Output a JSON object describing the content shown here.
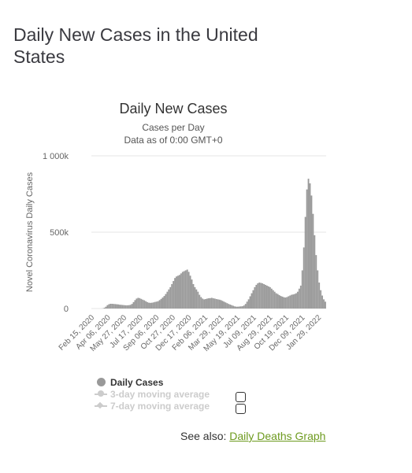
{
  "page": {
    "heading": "Daily New Cases in the United States"
  },
  "chart_data": {
    "type": "bar",
    "title": "Daily New Cases",
    "subtitle": "Cases per Day",
    "subtitle2": "Data as of 0:00 GMT+0",
    "xlabel": "",
    "ylabel": "Novel Coronavirus Daily Cases",
    "ylim": [
      0,
      1000000
    ],
    "yticks": [
      {
        "value": 0,
        "label": "0"
      },
      {
        "value": 500000,
        "label": "500k"
      },
      {
        "value": 1000000,
        "label": "1 000k"
      }
    ],
    "grid": true,
    "color": "#999999",
    "xticks": [
      "Feb 15, 2020",
      "Apr 06, 2020",
      "May 27, 2020",
      "Jul 17, 2020",
      "Sep 06, 2020",
      "Oct 27, 2020",
      "Dec 17, 2020",
      "Feb 06, 2021",
      "Mar 29, 2021",
      "May 19, 2021",
      "Jul 09, 2021",
      "Aug 29, 2021",
      "Oct 19, 2021",
      "Dec 09, 2021",
      "Jan 29, 2022"
    ],
    "series": [
      {
        "name": "Daily Cases",
        "x_start": "2020-02-15",
        "x_end": "2022-03-01",
        "values": [
          0,
          0,
          0,
          0,
          0,
          0,
          0,
          1000,
          5000,
          12000,
          22000,
          28000,
          31000,
          31000,
          30000,
          29000,
          28000,
          27000,
          25000,
          24000,
          23000,
          22000,
          21000,
          21000,
          22000,
          24000,
          30000,
          42000,
          55000,
          65000,
          70000,
          68000,
          63000,
          58000,
          54000,
          48000,
          42000,
          38000,
          37000,
          38000,
          40000,
          43000,
          45000,
          48000,
          55000,
          63000,
          72000,
          82000,
          95000,
          110000,
          125000,
          140000,
          160000,
          180000,
          200000,
          210000,
          215000,
          220000,
          230000,
          240000,
          245000,
          250000,
          255000,
          240000,
          215000,
          190000,
          160000,
          140000,
          125000,
          110000,
          90000,
          75000,
          65000,
          60000,
          62000,
          65000,
          67000,
          68000,
          70000,
          67000,
          65000,
          62000,
          60000,
          58000,
          55000,
          50000,
          45000,
          40000,
          35000,
          30000,
          26000,
          22000,
          18000,
          14000,
          12000,
          12000,
          13000,
          14000,
          15000,
          20000,
          30000,
          45000,
          60000,
          80000,
          100000,
          120000,
          140000,
          155000,
          165000,
          170000,
          168000,
          165000,
          160000,
          155000,
          150000,
          145000,
          140000,
          130000,
          120000,
          110000,
          100000,
          95000,
          88000,
          82000,
          78000,
          74000,
          72000,
          75000,
          80000,
          85000,
          90000,
          92000,
          95000,
          100000,
          110000,
          130000,
          150000,
          250000,
          400000,
          600000,
          780000,
          850000,
          820000,
          740000,
          620000,
          480000,
          350000,
          250000,
          170000,
          120000,
          85000,
          60000,
          45000
        ]
      },
      {
        "name": "3-day moving average",
        "hidden": true
      },
      {
        "name": "7-day moving average",
        "hidden": true
      }
    ]
  },
  "see_also": {
    "prefix": "See also:",
    "link_label": "Daily Deaths Graph"
  }
}
